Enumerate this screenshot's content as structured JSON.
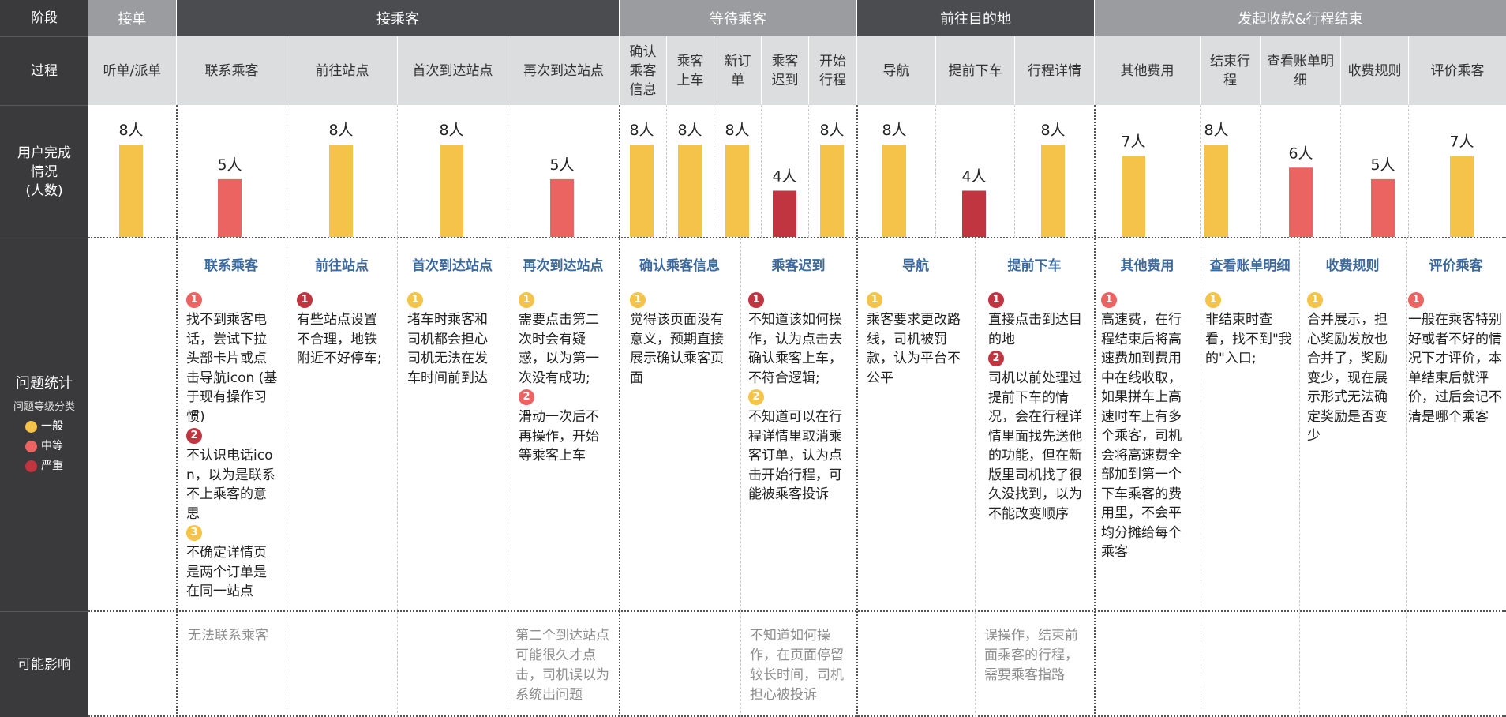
{
  "row_labels": {
    "stage": "阶段",
    "process": "过程",
    "completion": [
      "用户完成",
      "情况",
      "(人数)"
    ],
    "issues": "问题统计",
    "impact": "可能影响"
  },
  "legend": {
    "title": "问题等级分类",
    "items": [
      {
        "label": "一般",
        "color": "#f5c24a"
      },
      {
        "label": "中等",
        "color": "#ec6461"
      },
      {
        "label": "严重",
        "color": "#c0353f"
      }
    ]
  },
  "stages": [
    "接单",
    "接乘客",
    "等待乘客",
    "前往目的地",
    "发起收款&行程结束"
  ],
  "processes": [
    "听单/派单",
    "联系乘客",
    "前往站点",
    "首次到达站点",
    "再次到达站点",
    "确认乘客信息",
    "乘客上车",
    "新订单",
    "乘客迟到",
    "开始行程",
    "导航",
    "提前下车",
    "行程详情",
    "其他费用",
    "结束行程",
    "查看账单明细",
    "收费规则",
    "评价乘客"
  ],
  "colors": {
    "一般": "#f5c24a",
    "中等": "#ec6461",
    "严重": "#c0353f"
  },
  "chart_data": {
    "type": "bar",
    "categories": [
      "听单/派单",
      "联系乘客",
      "前往站点",
      "首次到达站点",
      "再次到达站点",
      "确认乘客信息",
      "乘客上车",
      "新订单",
      "乘客迟到",
      "开始行程",
      "导航",
      "提前下车",
      "行程详情",
      "其他费用",
      "结束行程",
      "查看账单明细",
      "收费规则",
      "评价乘客"
    ],
    "values": [
      8,
      5,
      8,
      8,
      5,
      8,
      8,
      8,
      4,
      8,
      8,
      4,
      8,
      7,
      8,
      6,
      5,
      7
    ],
    "value_labels": [
      "8人",
      "5人",
      "8人",
      "8人",
      "5人",
      "8人",
      "8人",
      "8人",
      "4人",
      "8人",
      "8人",
      "4人",
      "8人",
      "7人",
      "8人",
      "6人",
      "5人",
      "7人"
    ],
    "level": [
      "一般",
      "中等",
      "一般",
      "一般",
      "中等",
      "一般",
      "一般",
      "一般",
      "严重",
      "一般",
      "一般",
      "严重",
      "一般",
      "一般",
      "一般",
      "中等",
      "中等",
      "一般"
    ],
    "ylim": [
      0,
      8
    ],
    "grid": false,
    "legend": "left"
  },
  "issues": [
    {
      "title": "联系乘客",
      "items": [
        {
          "num": "1",
          "level": "中等",
          "text": "找不到乘客电话，尝试下拉头部卡片或点击导航icon (基于现有操作习惯)"
        },
        {
          "num": "2",
          "level": "严重",
          "text": "不认识电话icon，以为是联系不上乘客的意思"
        },
        {
          "num": "3",
          "level": "一般",
          "text": "不确定详情页是两个订单是在同一站点"
        }
      ]
    },
    {
      "title": "前往站点",
      "items": [
        {
          "num": "1",
          "level": "严重",
          "text": "有些站点设置不合理，地铁附近不好停车;"
        }
      ]
    },
    {
      "title": "首次到达站点",
      "items": [
        {
          "num": "1",
          "level": "一般",
          "text": "堵车时乘客和司机都会担心司机无法在发车时间前到达"
        }
      ]
    },
    {
      "title": "再次到达站点",
      "items": [
        {
          "num": "1",
          "level": "一般",
          "text": "需要点击第二次时会有疑惑，以为第一次没有成功;"
        },
        {
          "num": "2",
          "level": "中等",
          "text": "滑动一次后不再操作，开始等乘客上车"
        }
      ]
    },
    {
      "title": "确认乘客信息",
      "items": [
        {
          "num": "1",
          "level": "一般",
          "text": "觉得该页面没有意义，预期直接展示确认乘客页面"
        }
      ]
    },
    {
      "title": "乘客迟到",
      "items": [
        {
          "num": "1",
          "level": "严重",
          "text": "不知道该如何操作，认为点击去确认乘客上车，不符合逻辑;"
        },
        {
          "num": "2",
          "level": "一般",
          "text": "不知道可以在行程详情里取消乘客订单，认为点击开始行程，可能被乘客投诉"
        }
      ]
    },
    {
      "title": "导航",
      "items": [
        {
          "num": "1",
          "level": "一般",
          "text": "乘客要求更改路线，司机被罚款，认为平台不公平"
        }
      ]
    },
    {
      "title": "提前下车",
      "items": [
        {
          "num": "1",
          "level": "严重",
          "text": "直接点击到达目的地"
        },
        {
          "num": "2",
          "level": "严重",
          "text": "司机以前处理过提前下车的情况，会在行程详情里面找先送他的功能，但在新版里司机找了很久没找到，以为不能改变顺序"
        }
      ]
    },
    {
      "title": "其他费用",
      "items": [
        {
          "num": "1",
          "level": "中等",
          "text": "高速费，在行程结束后将高速费加到费用中在线收取，如果拼车上高速时车上有多个乘客，司机会将高速费全部加到第一个下车乘客的费用里，不会平均分摊给每个乘客"
        }
      ]
    },
    {
      "title": "查看账单明细",
      "items": [
        {
          "num": "1",
          "level": "一般",
          "text": "非结束时查看，找不到\"我的\"入口;"
        }
      ]
    },
    {
      "title": "收费规则",
      "items": [
        {
          "num": "1",
          "level": "一般",
          "text": "合并展示，担心奖励发放也合并了，奖励变少，现在展示形式无法确定奖励是否变少"
        }
      ]
    },
    {
      "title": "评价乘客",
      "items": [
        {
          "num": "1",
          "level": "中等",
          "text": "一般在乘客特别好或者不好的情况下才评价，本单结束后就评价，过后会记不清是哪个乘客"
        }
      ]
    }
  ],
  "impacts": [
    "无法联系乘客",
    "第二个到达站点可能很久才点击，司机误以为系统出问题",
    "不知道如何操作，在页面停留较长时间，司机担心被投诉",
    "误操作，结束前面乘客的行程，需要乘客指路"
  ]
}
